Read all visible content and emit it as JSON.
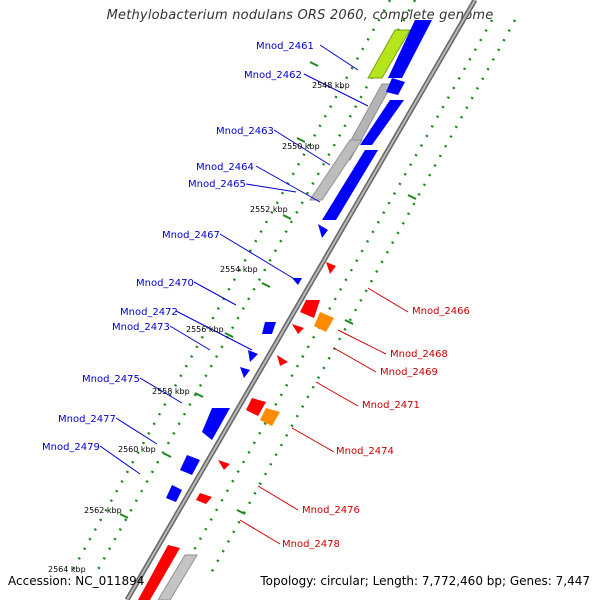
{
  "title": "Methylobacterium nodulans ORS 2060, complete genome",
  "footer": {
    "accession": "Accession: NC_011894",
    "topology": "Topology: circular; Length: 7,772,460 bp; Genes: 7,447"
  },
  "colors": {
    "plus_label": "#0000cc",
    "minus_label": "#cc0000",
    "backbone": "#808080",
    "tick_green": "#1a8a1a",
    "cds_blue": "#0000ff",
    "cds_red": "#ff0000",
    "orange": "#ff8c00",
    "gray_feature": "#b0b0b0",
    "yellow_green": "#b5e61d"
  },
  "kbp_ticks": [
    "2548 kbp",
    "2550 kbp",
    "2552 kbp",
    "2554 kbp",
    "2556 kbp",
    "2558 kbp",
    "2560 kbp",
    "2562 kbp",
    "2564 kbp"
  ],
  "plus_genes": [
    "Mnod_2461",
    "Mnod_2462",
    "Mnod_2463",
    "Mnod_2464",
    "Mnod_2465",
    "Mnod_2467",
    "Mnod_2470",
    "Mnod_2472",
    "Mnod_2473",
    "Mnod_2475",
    "Mnod_2477",
    "Mnod_2479"
  ],
  "minus_genes": [
    "Mnod_2466",
    "Mnod_2468",
    "Mnod_2469",
    "Mnod_2471",
    "Mnod_2474",
    "Mnod_2476",
    "Mnod_2478"
  ]
}
